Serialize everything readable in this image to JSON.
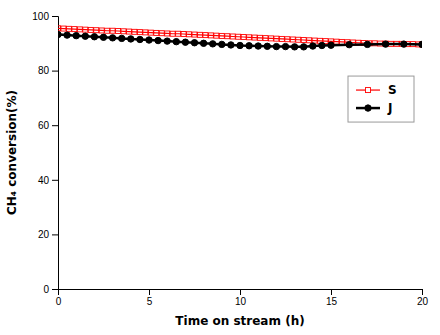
{
  "chart_data": {
    "type": "line",
    "xlabel": "Time on stream (h)",
    "ylabel": "CH₄ conversion(%)",
    "xlim": [
      0,
      20
    ],
    "ylim": [
      0,
      100
    ],
    "xticks": [
      0,
      5,
      10,
      15,
      20
    ],
    "yticks": [
      0,
      20,
      40,
      60,
      80,
      100
    ],
    "grid": false,
    "legend": "right",
    "series": [
      {
        "name": "S",
        "color": "#ff0000",
        "marker": "square",
        "line_style": "solid",
        "x": [
          0.0,
          0.3,
          0.6,
          0.9,
          1.2,
          1.5,
          1.8,
          2.1,
          2.4,
          2.7,
          3.0,
          3.3,
          3.6,
          3.9,
          4.2,
          4.5,
          4.8,
          5.1,
          5.4,
          5.7,
          6.0,
          6.3,
          6.6,
          6.9,
          7.2,
          7.5,
          7.8,
          8.1,
          8.4,
          8.7,
          9.0,
          9.3,
          9.6,
          9.9,
          10.2,
          10.5,
          10.8,
          11.1,
          11.4,
          11.7,
          12.0,
          12.3,
          12.6,
          12.9,
          13.2,
          13.5,
          13.8,
          14.1,
          14.4,
          14.7,
          15.0,
          15.3,
          15.6,
          15.9,
          16.2,
          16.5,
          16.8,
          17.1,
          17.4,
          17.7,
          18.0,
          18.3,
          18.6,
          18.9,
          19.2,
          19.5,
          19.8,
          20.0
        ],
        "values": [
          95.5,
          95.4,
          95.3,
          95.2,
          95.1,
          95.0,
          94.9,
          94.8,
          94.7,
          94.6,
          94.6,
          94.5,
          94.4,
          94.3,
          94.2,
          94.1,
          94.0,
          93.9,
          93.8,
          93.7,
          93.6,
          93.5,
          93.5,
          93.4,
          93.3,
          93.2,
          93.1,
          93.0,
          92.9,
          92.8,
          92.7,
          92.6,
          92.5,
          92.4,
          92.3,
          92.2,
          92.1,
          92.0,
          91.9,
          91.8,
          91.7,
          91.6,
          91.5,
          91.4,
          91.3,
          91.2,
          91.1,
          91.0,
          90.9,
          90.8,
          90.7,
          90.6,
          90.5,
          90.4,
          90.3,
          90.2,
          90.1,
          90.0,
          90.0,
          89.9,
          89.9,
          89.8,
          89.8,
          89.8,
          89.7,
          89.7,
          89.6,
          89.6
        ]
      },
      {
        "name": "J",
        "color": "#000000",
        "marker": "circle",
        "line_style": "solid",
        "x": [
          0.0,
          0.5,
          1.0,
          1.5,
          2.0,
          2.5,
          3.0,
          3.5,
          4.0,
          4.5,
          5.0,
          5.5,
          6.0,
          6.5,
          7.0,
          7.5,
          8.0,
          8.5,
          9.0,
          9.5,
          10.0,
          10.5,
          11.0,
          11.5,
          12.0,
          12.5,
          13.0,
          13.5,
          14.0,
          14.5,
          15.0,
          16.0,
          17.0,
          18.0,
          19.0,
          20.0
        ],
        "values": [
          93.2,
          93.0,
          92.8,
          92.6,
          92.4,
          92.2,
          92.0,
          91.8,
          91.6,
          91.4,
          91.2,
          91.0,
          90.8,
          90.6,
          90.4,
          90.2,
          90.0,
          89.8,
          89.6,
          89.4,
          89.2,
          89.1,
          89.0,
          88.9,
          88.8,
          88.8,
          88.7,
          88.7,
          89.0,
          89.2,
          89.3,
          89.5,
          89.6,
          89.7,
          89.7,
          89.6
        ]
      }
    ]
  }
}
